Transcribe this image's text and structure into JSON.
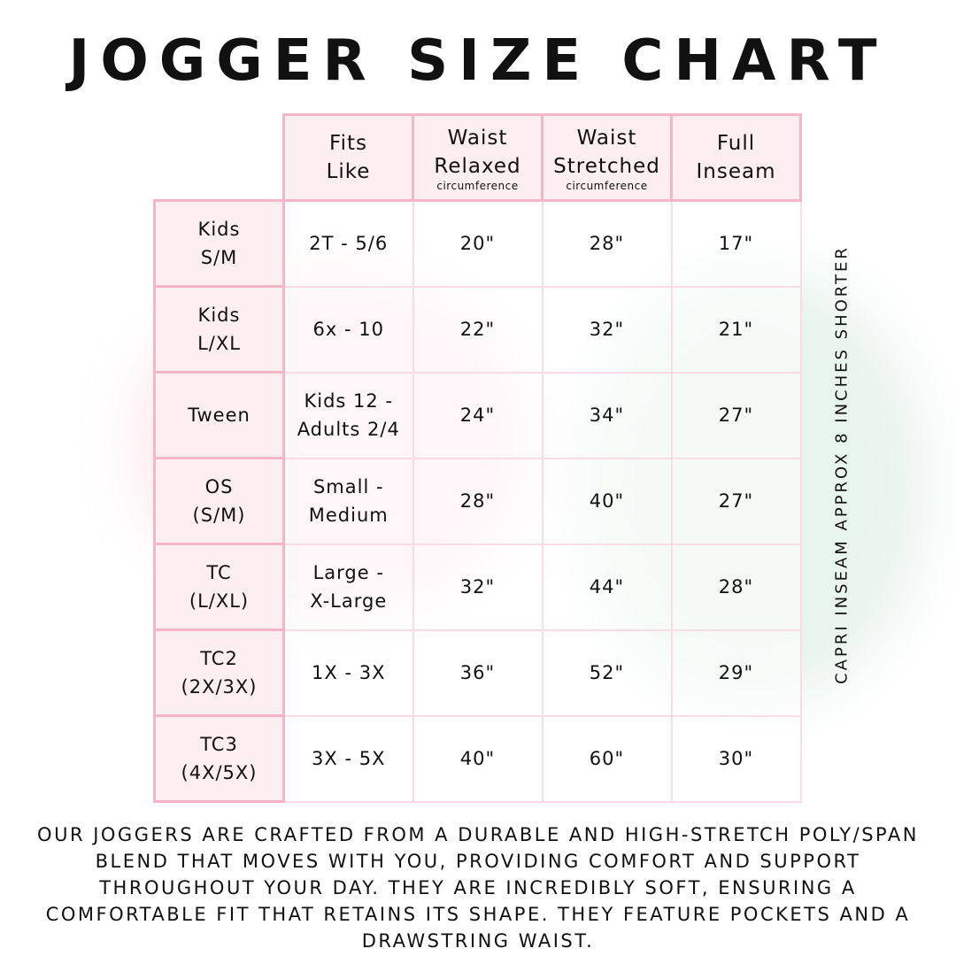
{
  "title": "JOGGER SIZE CHART",
  "columns": [
    {
      "line1": "Fits",
      "line2": "Like",
      "sub": ""
    },
    {
      "line1": "Waist",
      "line2": "Relaxed",
      "sub": "circumference"
    },
    {
      "line1": "Waist",
      "line2": "Stretched",
      "sub": "circumference"
    },
    {
      "line1": "Full",
      "line2": "Inseam",
      "sub": ""
    }
  ],
  "rows": [
    {
      "l1": "Kids",
      "l2": "S/M",
      "fit1": "2T - 5/6",
      "fit2": "",
      "relaxed": "20\"",
      "stretched": "28\"",
      "inseam": "17\""
    },
    {
      "l1": "Kids",
      "l2": "L/XL",
      "fit1": "6x - 10",
      "fit2": "",
      "relaxed": "22\"",
      "stretched": "32\"",
      "inseam": "21\""
    },
    {
      "l1": "Tween",
      "l2": "",
      "fit1": "Kids 12 -",
      "fit2": "Adults 2/4",
      "relaxed": "24\"",
      "stretched": "34\"",
      "inseam": "27\""
    },
    {
      "l1": "OS",
      "l2": "(S/M)",
      "fit1": "Small -",
      "fit2": "Medium",
      "relaxed": "28\"",
      "stretched": "40\"",
      "inseam": "27\""
    },
    {
      "l1": "TC",
      "l2": "(L/XL)",
      "fit1": "Large -",
      "fit2": "X-Large",
      "relaxed": "32\"",
      "stretched": "44\"",
      "inseam": "28\""
    },
    {
      "l1": "TC2",
      "l2": "(2X/3X)",
      "fit1": "1X - 3X",
      "fit2": "",
      "relaxed": "36\"",
      "stretched": "52\"",
      "inseam": "29\""
    },
    {
      "l1": "TC3",
      "l2": "(4X/5X)",
      "fit1": "3X - 5X",
      "fit2": "",
      "relaxed": "40\"",
      "stretched": "60\"",
      "inseam": "30\""
    }
  ],
  "side_note": "CAPRI INSEAM APPROX 8 INCHES SHORTER",
  "description": "Our joggers are crafted from a durable and high-stretch poly/span blend that moves with you, providing comfort and support throughout your day. They are incredibly soft, ensuring a comfortable fit that retains its shape. They feature pockets and a drawstring waist.",
  "colors": {
    "border": "#f7b6c8",
    "header_fill": "#fdeef2",
    "grid": "#fbdbe4"
  }
}
